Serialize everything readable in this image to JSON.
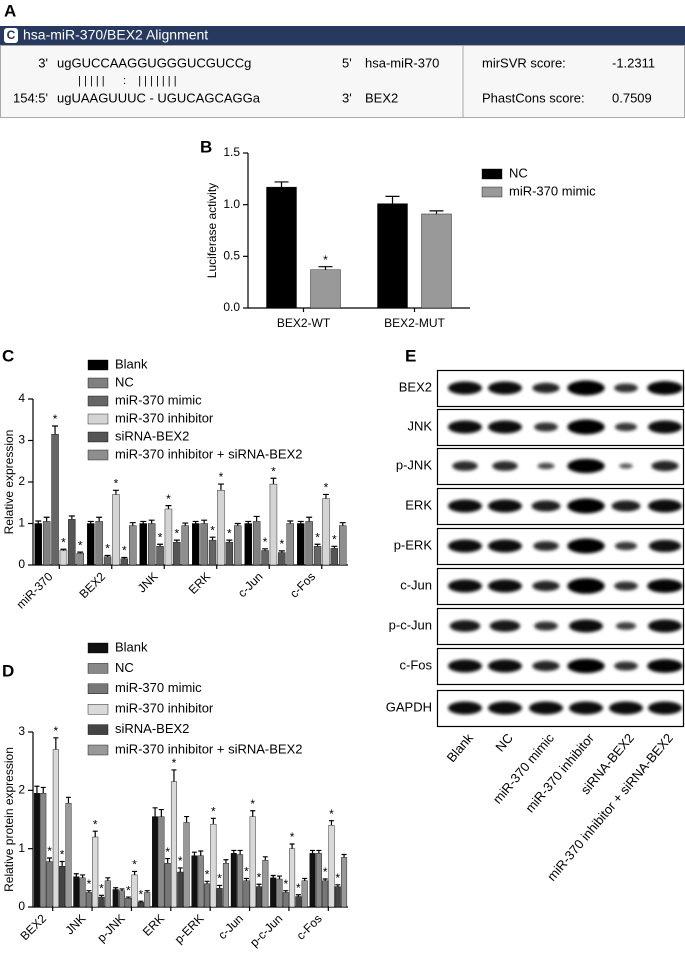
{
  "panel_labels": [
    "A",
    "B",
    "C",
    "D",
    "E"
  ],
  "alignment": {
    "icon": "C",
    "title": "hsa-miR-370/BEX2 Alignment",
    "rows": [
      {
        "prefix": "3'",
        "sequence": "ugGUCCAAGGUGGGUCGUCCg",
        "end": "5'",
        "name": "hsa-miR-370"
      },
      {
        "prefix": "154:5'",
        "sequence": "ugUAAGUUUC - UGUCAGCAGGa",
        "end": "3'",
        "name": "BEX2"
      }
    ],
    "pairing": "  | | | | |      :    | | | | | | |",
    "scores": [
      {
        "label": "mirSVR score:",
        "value": -1.2311
      },
      {
        "label": "PhastCons score:",
        "value": 0.7509
      }
    ]
  },
  "chart_data": [
    {
      "type": "bar",
      "ylabel": "Luciferase activity",
      "categories": [
        "BEX2-WT",
        "BEX2-MUT"
      ],
      "series": [
        {
          "name": "NC",
          "color": "#000000",
          "values": [
            1.17,
            1.01
          ],
          "errors": [
            0.05,
            0.07
          ]
        },
        {
          "name": "miR-370 mimic",
          "color": "#999999",
          "values": [
            0.37,
            0.91
          ],
          "errors": [
            0.03,
            0.03
          ],
          "annotations": [
            "*",
            null
          ]
        }
      ],
      "ylim": [
        0,
        1.5
      ],
      "yticks": [
        {
          "value": 0,
          "label": "0.0"
        },
        {
          "value": 0.5,
          "label": "0.5"
        },
        {
          "value": 1,
          "label": "1.0"
        },
        {
          "value": 1.5,
          "label": "1.5"
        }
      ],
      "grid": false,
      "legend": "right"
    },
    {
      "type": "bar",
      "ylabel": "Relative expression",
      "categories": [
        "miR-370",
        "BEX2",
        "JNK",
        "ERK",
        "c-Jun",
        "c-Fos"
      ],
      "series": [
        {
          "name": "Blank",
          "color": "#000000",
          "values": [
            1.0,
            1.0,
            1.0,
            1.0,
            1.0,
            1.0
          ],
          "errors": [
            0.06,
            0.05,
            0.05,
            0.05,
            0.05,
            0.05
          ]
        },
        {
          "name": "NC",
          "color": "#808080",
          "values": [
            1.05,
            1.05,
            1.0,
            1.0,
            1.05,
            1.05
          ],
          "errors": [
            0.1,
            0.1,
            0.08,
            0.08,
            0.12,
            0.1
          ]
        },
        {
          "name": "miR-370 mimic",
          "color": "#666666",
          "values": [
            3.15,
            0.2,
            0.45,
            0.6,
            0.35,
            0.45
          ],
          "errors": [
            0.2,
            0.03,
            0.05,
            0.07,
            0.04,
            0.05
          ],
          "annotations": [
            "*",
            "*",
            "*",
            "*",
            "*",
            "*"
          ]
        },
        {
          "name": "miR-370 inhibitor",
          "color": "#d4d4d4",
          "values": [
            0.35,
            1.7,
            1.35,
            1.8,
            1.95,
            1.6
          ],
          "errors": [
            0.03,
            0.1,
            0.08,
            0.15,
            0.14,
            0.1
          ],
          "annotations": [
            "*",
            "*",
            "*",
            "*",
            "*",
            "*"
          ]
        },
        {
          "name": "siRNA-BEX2",
          "color": "#555555",
          "values": [
            1.1,
            0.15,
            0.55,
            0.55,
            0.3,
            0.4
          ],
          "errors": [
            0.08,
            0.03,
            0.05,
            0.05,
            0.04,
            0.05
          ],
          "annotations": [
            null,
            "*",
            "*",
            "*",
            "*",
            "*"
          ]
        },
        {
          "name": "miR-370 inhibitor + siRNA-BEX2",
          "color": "#8e8e8e",
          "values": [
            0.28,
            0.95,
            0.95,
            0.95,
            1.0,
            0.95
          ],
          "errors": [
            0.03,
            0.07,
            0.06,
            0.05,
            0.06,
            0.07
          ],
          "annotations": [
            "*",
            null,
            null,
            null,
            null,
            null
          ]
        }
      ],
      "ylim": [
        0,
        4
      ],
      "yticks": [
        0,
        1,
        2,
        3,
        4
      ],
      "grid": false,
      "legend": "top"
    },
    {
      "type": "bar",
      "ylabel": "Relative protein expression",
      "categories": [
        "BEX2",
        "JNK",
        "p-JNK",
        "ERK",
        "p-ERK",
        "c-Jun",
        "p-c-Jun",
        "c-Fos"
      ],
      "series": [
        {
          "name": "Blank",
          "color": "#111111",
          "values": [
            1.95,
            0.52,
            0.3,
            1.55,
            0.88,
            0.92,
            0.5,
            0.92
          ],
          "errors": [
            0.12,
            0.05,
            0.03,
            0.15,
            0.06,
            0.05,
            0.04,
            0.05
          ]
        },
        {
          "name": "NC",
          "color": "#888888",
          "values": [
            1.95,
            0.5,
            0.28,
            1.55,
            0.88,
            0.9,
            0.48,
            0.92
          ],
          "errors": [
            0.1,
            0.05,
            0.03,
            0.12,
            0.08,
            0.07,
            0.05,
            0.05
          ]
        },
        {
          "name": "miR-370 mimic",
          "color": "#777777",
          "values": [
            0.78,
            0.25,
            0.15,
            0.75,
            0.4,
            0.45,
            0.25,
            0.45
          ],
          "errors": [
            0.06,
            0.03,
            0.02,
            0.08,
            0.04,
            0.04,
            0.03,
            0.03
          ],
          "annotations": [
            "*",
            "*",
            "*",
            "*",
            "*",
            "*",
            "*",
            "*"
          ]
        },
        {
          "name": "miR-370 inhibitor",
          "color": "#d9d9d9",
          "values": [
            2.7,
            1.2,
            0.55,
            2.15,
            1.42,
            1.55,
            1.0,
            1.4
          ],
          "errors": [
            0.2,
            0.1,
            0.06,
            0.2,
            0.1,
            0.1,
            0.08,
            0.08
          ],
          "annotations": [
            "*",
            "*",
            "*",
            "*",
            "*",
            "*",
            "*",
            "*"
          ]
        },
        {
          "name": "siRNA-BEX2",
          "color": "#444444",
          "values": [
            0.7,
            0.17,
            0.08,
            0.6,
            0.32,
            0.35,
            0.18,
            0.35
          ],
          "errors": [
            0.08,
            0.03,
            0.02,
            0.07,
            0.05,
            0.04,
            0.03,
            0.03
          ],
          "annotations": [
            "*",
            "*",
            "*",
            "*",
            "*",
            "*",
            "*",
            "*"
          ]
        },
        {
          "name": "miR-370 inhibitor + siRNA-BEX2",
          "color": "#999999",
          "values": [
            1.78,
            0.45,
            0.25,
            1.45,
            0.75,
            0.8,
            0.45,
            0.85
          ],
          "errors": [
            0.1,
            0.05,
            0.03,
            0.1,
            0.06,
            0.06,
            0.04,
            0.05
          ]
        }
      ],
      "ylim": [
        0,
        3
      ],
      "yticks": [
        0,
        1,
        2,
        3
      ],
      "grid": false,
      "legend": "top"
    }
  ],
  "blot": {
    "rows": [
      "BEX2",
      "JNK",
      "p-JNK",
      "ERK",
      "p-ERK",
      "c-Jun",
      "p-c-Jun",
      "c-Fos",
      "GAPDH"
    ],
    "lanes": [
      "Blank",
      "NC",
      "miR-370 mimic",
      "miR-370 inhibitor",
      "siRNA-BEX2",
      "miR-370 inhibitor + siRNA-BEX2"
    ]
  }
}
